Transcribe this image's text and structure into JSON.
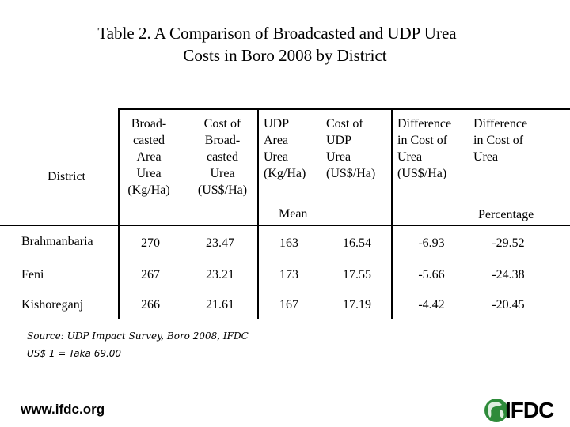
{
  "title": {
    "line1": "Table 2. A Comparison of Broadcasted and UDP Urea",
    "line2": "Costs in Boro 2008 by District"
  },
  "table": {
    "headers": {
      "district": "District",
      "col1": [
        "Broad-",
        "casted",
        "Area",
        "Urea",
        "(Kg/Ha)"
      ],
      "col2": [
        "Cost of",
        "Broad-",
        "casted",
        "Urea",
        "(US$/Ha)"
      ],
      "col3": [
        "UDP",
        "Area",
        "Urea",
        "(Kg/Ha)"
      ],
      "col4": [
        "Cost of",
        "UDP",
        "Urea",
        "(US$/Ha)"
      ],
      "col5": [
        "Difference",
        "in Cost of",
        "Urea",
        "(US$/Ha)"
      ],
      "col6": [
        "Difference",
        "in Cost of",
        "Urea"
      ],
      "mean": "Mean",
      "percentage": "Percentage"
    },
    "rows": [
      {
        "district": "Brahmanbaria",
        "v1": "270",
        "v2": "23.47",
        "v3": "163",
        "v4": "16.54",
        "v5": "-6.93",
        "v6": "-29.52"
      },
      {
        "district": "Feni",
        "v1": "267",
        "v2": "23.21",
        "v3": "173",
        "v4": "17.55",
        "v5": "-5.66",
        "v6": "-24.38"
      },
      {
        "district": "Kishoreganj",
        "v1": "266",
        "v2": "21.61",
        "v3": "167",
        "v4": "17.19",
        "v5": "-4.42",
        "v6": "-20.45"
      }
    ]
  },
  "footnotes": {
    "source": "Source: UDP Impact Survey, Boro 2008, IFDC",
    "rate": "US$ 1 = Taka 69.00"
  },
  "footer": {
    "url": "www.ifdc.org",
    "logo_text": "IFDC"
  },
  "colors": {
    "logo_green": "#2e8b3a",
    "text": "#000000"
  }
}
